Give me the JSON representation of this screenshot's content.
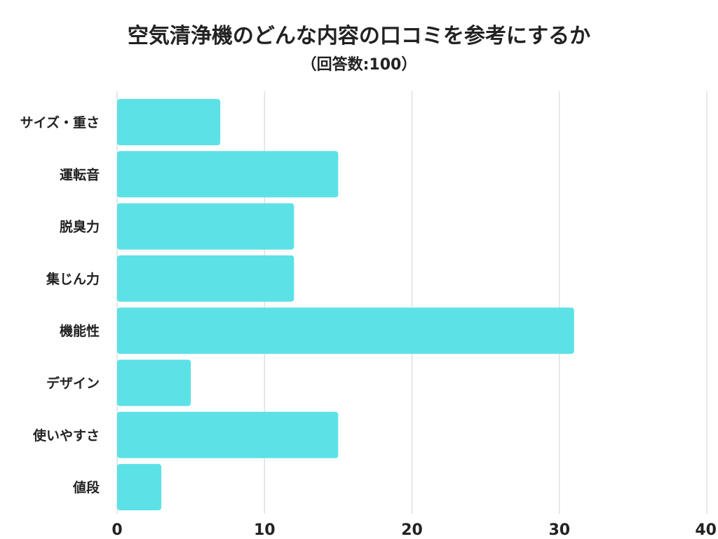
{
  "chart_data": {
    "type": "bar",
    "orientation": "horizontal",
    "title": "空気清浄機のどんな内容の口コミを参考にするか",
    "subtitle": "（回答数:100）",
    "categories": [
      "サイズ・重さ",
      "運転音",
      "脱臭力",
      "集じん力",
      "機能性",
      "デザイン",
      "使いやすさ",
      "値段"
    ],
    "values": [
      7,
      15,
      12,
      12,
      31,
      5,
      15,
      3
    ],
    "xlim": [
      0,
      40
    ],
    "x_ticks": [
      "0",
      "10",
      "20",
      "30",
      "40"
    ],
    "grid": true,
    "bar_color": "#5ce1e6",
    "grid_color": "#d9d9d9",
    "text_color": "#222222"
  }
}
